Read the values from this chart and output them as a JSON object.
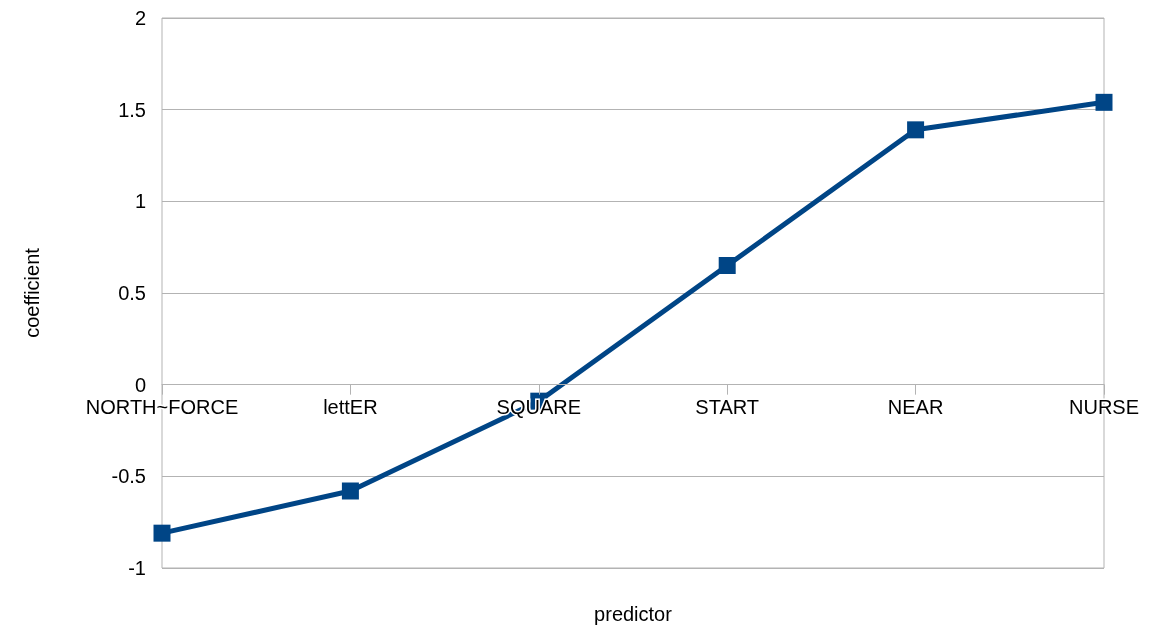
{
  "chart_data": {
    "type": "line",
    "xlabel": "predictor",
    "ylabel": "coefficient",
    "categories": [
      "NORTH~FORCE",
      "lettER",
      "SQUARE",
      "START",
      "NEAR",
      "NURSE"
    ],
    "series": [
      {
        "color": "#004586",
        "values": [
          -0.81,
          -0.58,
          -0.09,
          0.65,
          1.39,
          1.54
        ]
      }
    ],
    "ylim": [
      -1,
      2
    ],
    "yticks": [
      -1,
      -0.5,
      0,
      0.5,
      1,
      1.5,
      2
    ],
    "grid": "y",
    "marker": "square",
    "line_style": "solid"
  }
}
